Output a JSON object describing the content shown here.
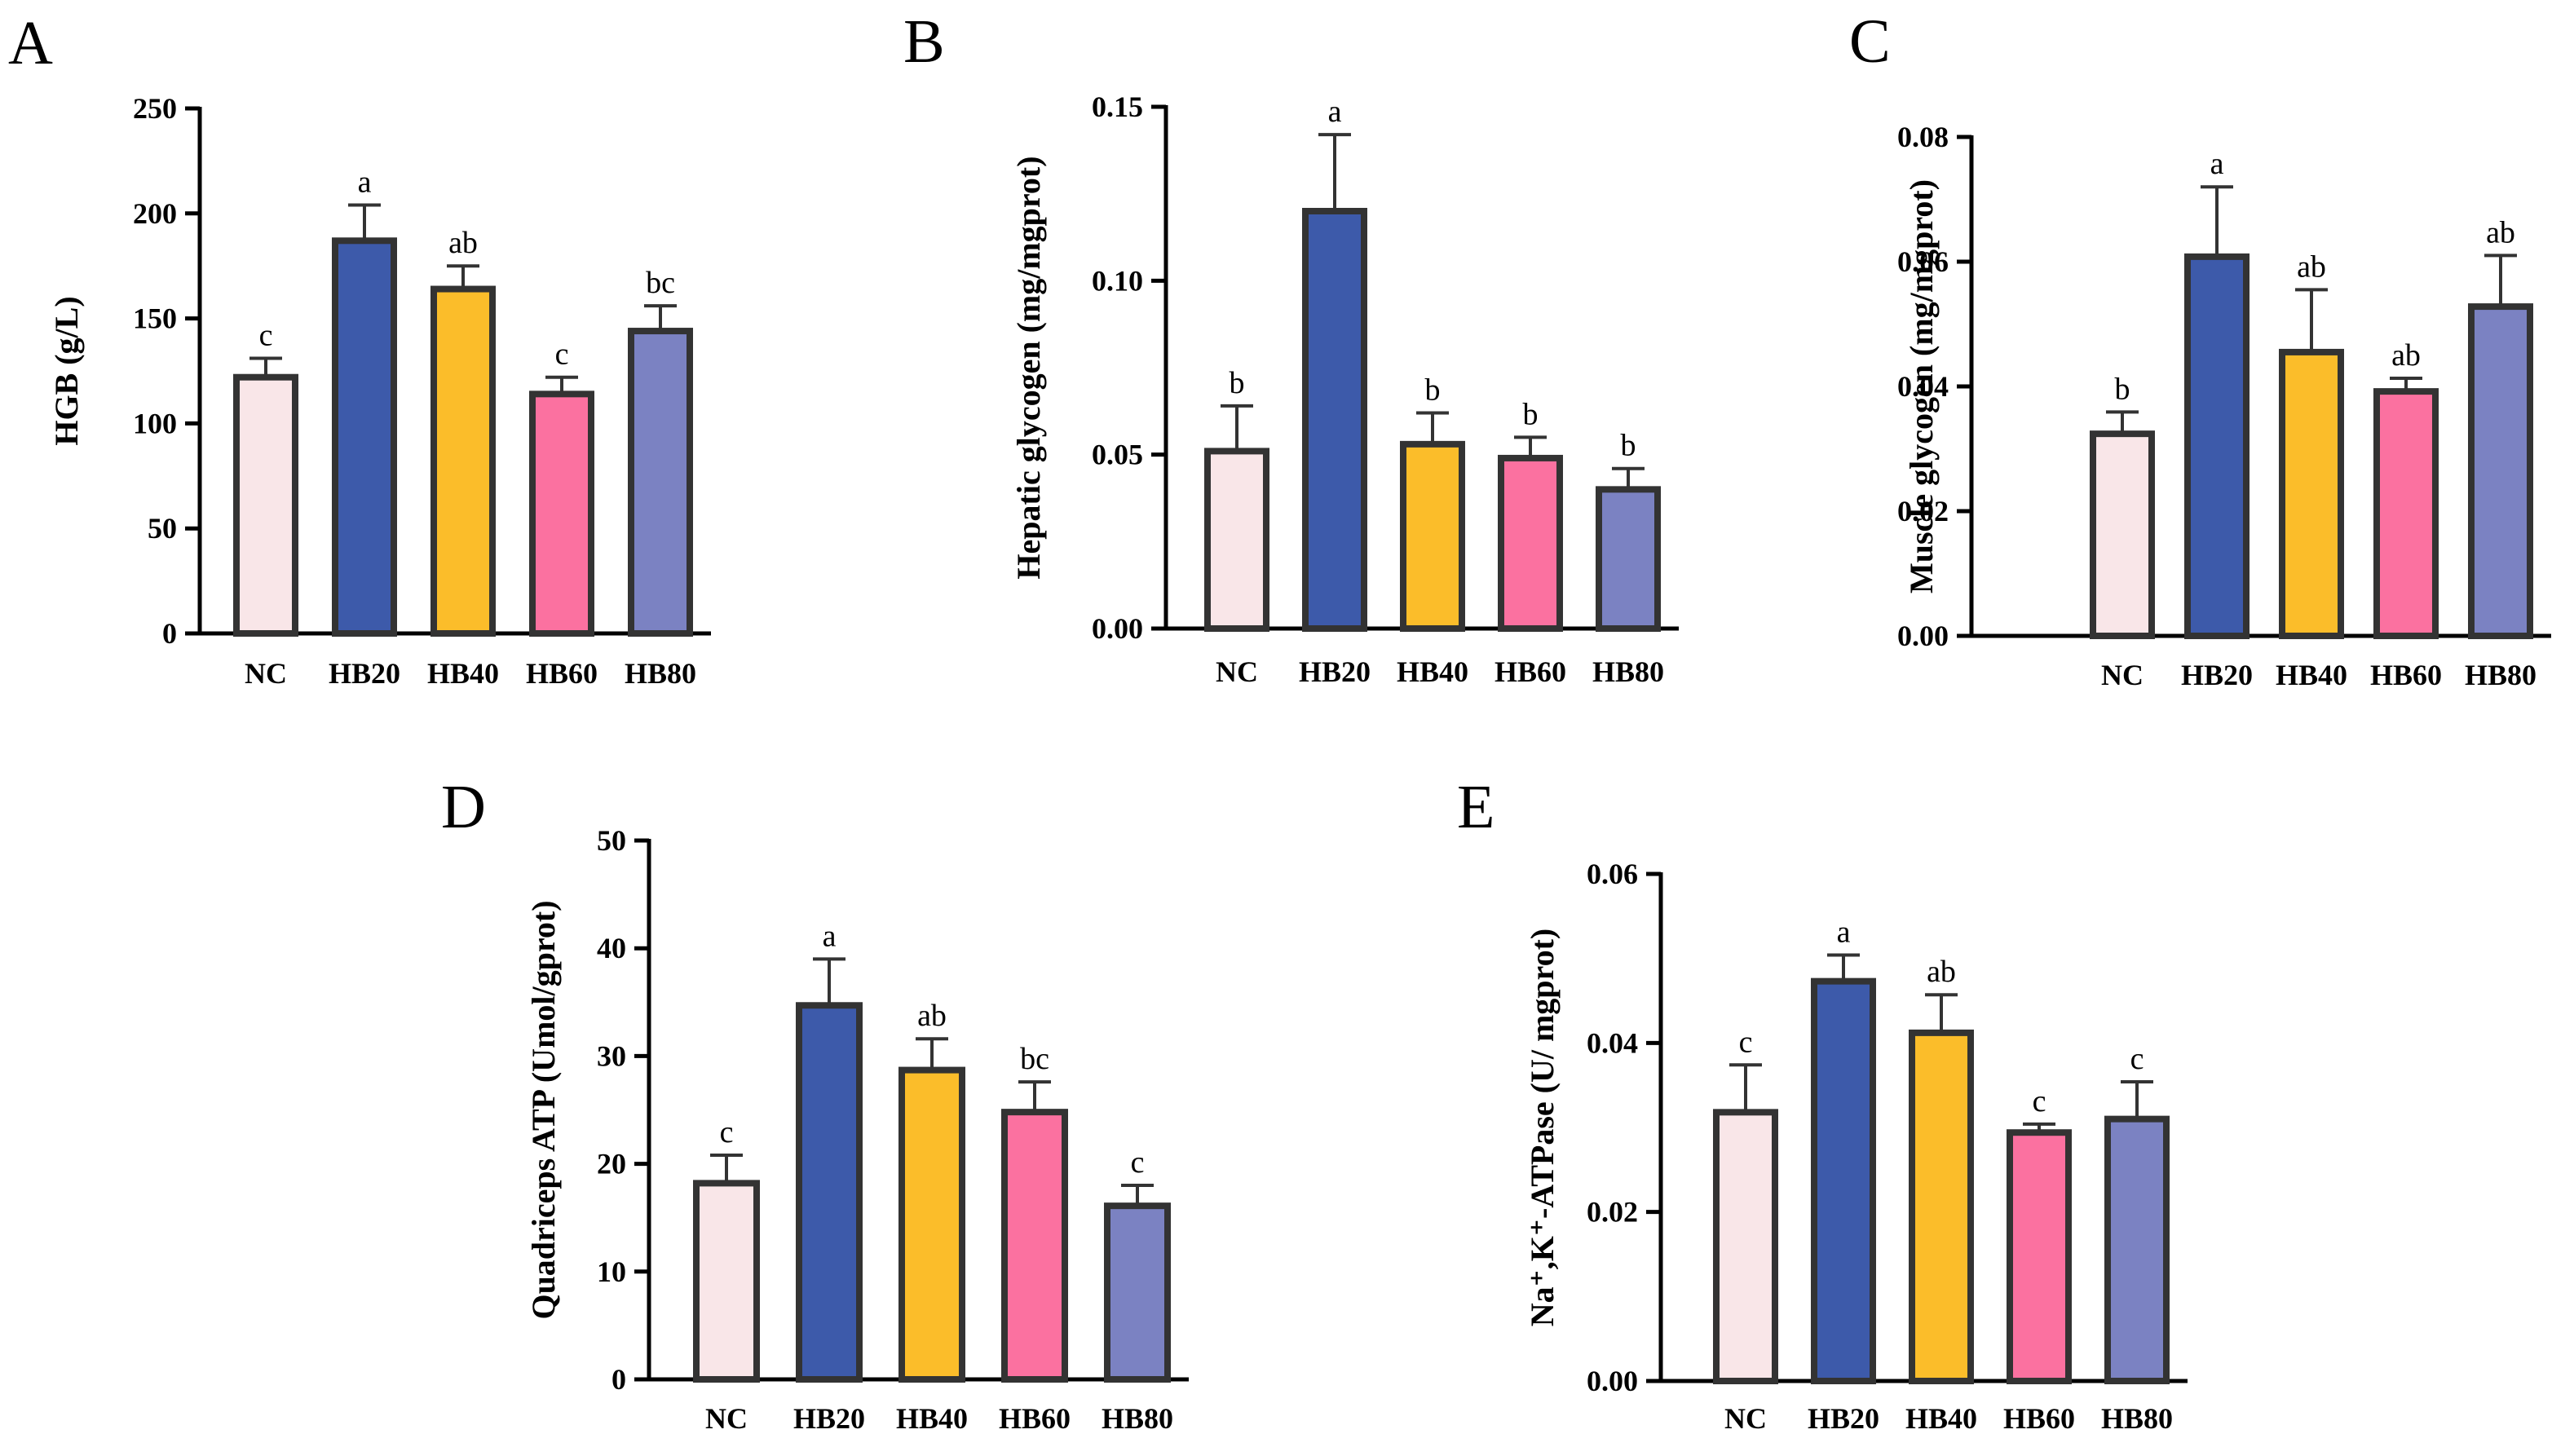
{
  "colors": {
    "NC": "#f9e6e8",
    "HB20": "#3d5aaa",
    "HB40": "#fbbd2a",
    "HB60": "#fb71a0",
    "HB80": "#7b82c2",
    "outline": "#333333",
    "axis": "#000000"
  },
  "chart_data": [
    {
      "panel": "A",
      "type": "bar",
      "categories": [
        "NC",
        "HB20",
        "HB40",
        "HB60",
        "HB80"
      ],
      "values": [
        122,
        187,
        164,
        114,
        144
      ],
      "errors": [
        9,
        17,
        11,
        8,
        12
      ],
      "significance": [
        "c",
        "a",
        "ab",
        "c",
        "bc"
      ],
      "ylabel": "HGB (g/L)",
      "ylim": [
        0,
        250
      ],
      "yticks": [
        "0",
        "50",
        "100",
        "150",
        "200",
        "250"
      ]
    },
    {
      "panel": "B",
      "type": "bar",
      "categories": [
        "NC",
        "HB20",
        "HB40",
        "HB60",
        "HB80"
      ],
      "values": [
        0.051,
        0.12,
        0.053,
        0.049,
        0.04
      ],
      "errors": [
        0.013,
        0.022,
        0.009,
        0.006,
        0.006
      ],
      "significance": [
        "b",
        "a",
        "b",
        "b",
        "b"
      ],
      "ylabel": "Hepatic glycogen (mg/mgprot)",
      "ylim": [
        0,
        0.15
      ],
      "yticks": [
        "0.00",
        "0.05",
        "0.10",
        "0.15"
      ]
    },
    {
      "panel": "C",
      "type": "bar",
      "categories": [
        "NC",
        "HB20",
        "HB40",
        "HB60",
        "HB80"
      ],
      "values": [
        0.0324,
        0.0608,
        0.0455,
        0.0392,
        0.0528
      ],
      "errors": [
        0.0035,
        0.0112,
        0.01,
        0.0021,
        0.0082
      ],
      "significance": [
        "b",
        "a",
        "ab",
        "ab",
        "ab"
      ],
      "ylabel": "Muscle glycogen (mg/mgprot)",
      "ylim": [
        0,
        0.08
      ],
      "yticks": [
        "0.00",
        "0.02",
        "0.04",
        "0.06",
        "0.08"
      ]
    },
    {
      "panel": "D",
      "type": "bar",
      "categories": [
        "NC",
        "HB20",
        "HB40",
        "HB60",
        "HB80"
      ],
      "values": [
        18.2,
        34.7,
        28.7,
        24.8,
        16.1
      ],
      "errors": [
        2.6,
        4.3,
        2.9,
        2.8,
        1.9
      ],
      "significance": [
        "c",
        "a",
        "ab",
        "bc",
        "c"
      ],
      "ylabel": "Quadriceps ATP (Umol/gprot)",
      "ylim": [
        0,
        50
      ],
      "yticks": [
        "0",
        "10",
        "20",
        "30",
        "40",
        "50"
      ]
    },
    {
      "panel": "E",
      "type": "bar",
      "categories": [
        "NC",
        "HB20",
        "HB40",
        "HB60",
        "HB80"
      ],
      "values": [
        0.0318,
        0.0473,
        0.0412,
        0.0294,
        0.031
      ],
      "errors": [
        0.0056,
        0.0031,
        0.0045,
        0.001,
        0.0044
      ],
      "significance": [
        "c",
        "a",
        "ab",
        "c",
        "c"
      ],
      "ylabel": "Na⁺,K⁺-ATPase (U/ mgprot)",
      "ylim": [
        0,
        0.06
      ],
      "yticks": [
        "0.00",
        "0.02",
        "0.04",
        "0.06"
      ]
    }
  ]
}
